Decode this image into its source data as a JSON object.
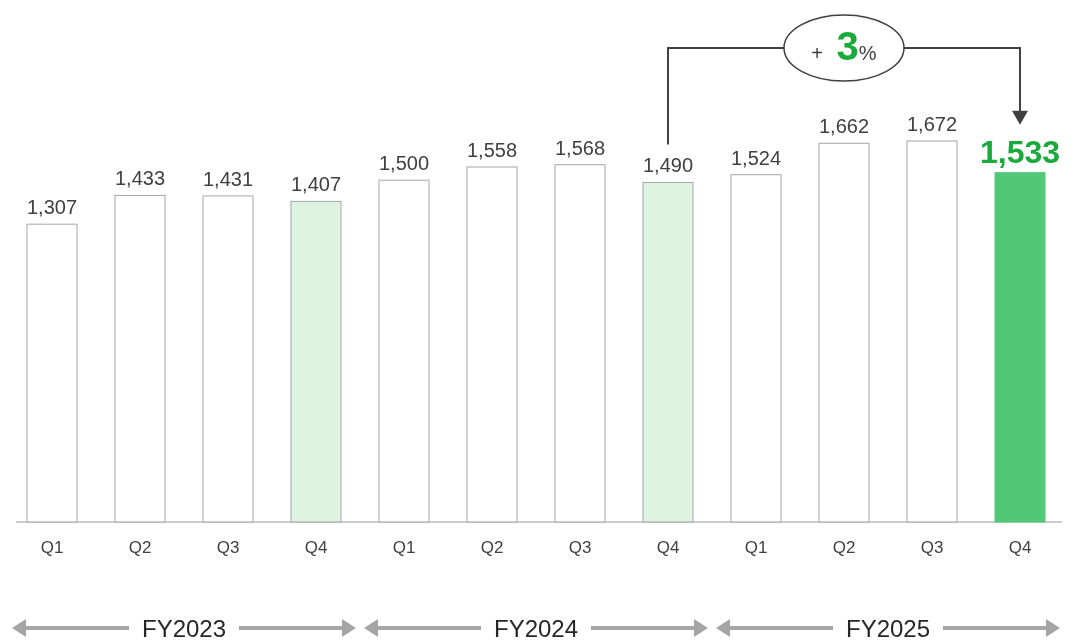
{
  "chart_data": {
    "type": "bar",
    "categories": [
      "Q1",
      "Q2",
      "Q3",
      "Q4",
      "Q1",
      "Q2",
      "Q3",
      "Q4",
      "Q1",
      "Q2",
      "Q3",
      "Q4"
    ],
    "values": [
      1307,
      1433,
      1431,
      1407,
      1500,
      1558,
      1568,
      1490,
      1524,
      1662,
      1672,
      1533
    ],
    "colors": [
      "#ffffff",
      "#ffffff",
      "#ffffff",
      "#dff3e3",
      "#ffffff",
      "#ffffff",
      "#ffffff",
      "#dff3e3",
      "#ffffff",
      "#ffffff",
      "#ffffff",
      "#50c878"
    ],
    "value_labels": [
      "1,307",
      "1,433",
      "1,431",
      "1,407",
      "1,500",
      "1,558",
      "1,568",
      "1,490",
      "1,524",
      "1,662",
      "1,672",
      "1,533"
    ],
    "annotations": [
      "+ 3%",
      "FY2023",
      "FY2024",
      "FY2025"
    ]
  }
}
